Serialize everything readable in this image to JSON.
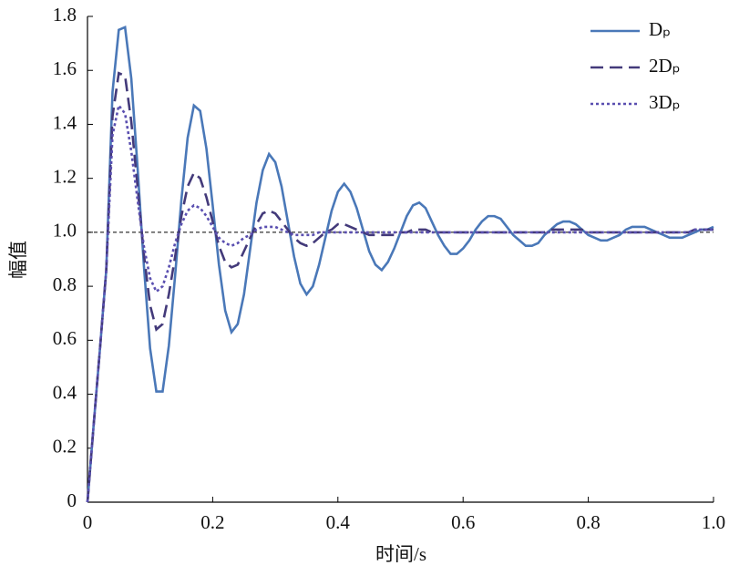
{
  "chart_data": {
    "type": "line",
    "x_label": "时间/s",
    "y_label": "幅值",
    "x": [
      0,
      0.01,
      0.02,
      0.03,
      0.04,
      0.05,
      0.06,
      0.07,
      0.08,
      0.09,
      0.1,
      0.11,
      0.12,
      0.13,
      0.14,
      0.15,
      0.16,
      0.17,
      0.18,
      0.19,
      0.2,
      0.21,
      0.22,
      0.23,
      0.24,
      0.25,
      0.26,
      0.27,
      0.28,
      0.29,
      0.3,
      0.31,
      0.32,
      0.33,
      0.34,
      0.35,
      0.36,
      0.37,
      0.38,
      0.39,
      0.4,
      0.41,
      0.42,
      0.43,
      0.44,
      0.45,
      0.46,
      0.47,
      0.48,
      0.49,
      0.5,
      0.51,
      0.52,
      0.53,
      0.54,
      0.55,
      0.56,
      0.57,
      0.58,
      0.59,
      0.6,
      0.61,
      0.62,
      0.63,
      0.64,
      0.65,
      0.66,
      0.67,
      0.68,
      0.69,
      0.7,
      0.71,
      0.72,
      0.73,
      0.74,
      0.75,
      0.76,
      0.77,
      0.78,
      0.79,
      0.8,
      0.81,
      0.82,
      0.83,
      0.84,
      0.85,
      0.86,
      0.87,
      0.88,
      0.89,
      0.9,
      0.91,
      0.92,
      0.93,
      0.94,
      0.95,
      0.96,
      0.97,
      0.98,
      0.99,
      1
    ],
    "series": [
      {
        "name": "Dₚ",
        "color": "#4a78b8",
        "style": "solid",
        "values": [
          0,
          0.29,
          0.57,
          0.86,
          1.52,
          1.75,
          1.76,
          1.57,
          1.24,
          0.88,
          0.57,
          0.41,
          0.41,
          0.58,
          0.84,
          1.12,
          1.35,
          1.47,
          1.45,
          1.31,
          1.1,
          0.88,
          0.71,
          0.63,
          0.66,
          0.77,
          0.94,
          1.11,
          1.23,
          1.29,
          1.26,
          1.17,
          1.04,
          0.91,
          0.81,
          0.77,
          0.8,
          0.88,
          0.98,
          1.08,
          1.15,
          1.18,
          1.15,
          1.09,
          1.01,
          0.93,
          0.88,
          0.86,
          0.89,
          0.94,
          1,
          1.06,
          1.1,
          1.11,
          1.09,
          1.04,
          0.99,
          0.95,
          0.92,
          0.92,
          0.94,
          0.97,
          1.01,
          1.04,
          1.06,
          1.06,
          1.05,
          1.02,
          0.99,
          0.97,
          0.95,
          0.95,
          0.96,
          0.99,
          1.01,
          1.03,
          1.04,
          1.04,
          1.03,
          1.01,
          0.99,
          0.98,
          0.97,
          0.97,
          0.98,
          0.99,
          1.01,
          1.02,
          1.02,
          1.02,
          1.01,
          1,
          0.99,
          0.98,
          0.98,
          0.98,
          0.99,
          1,
          1.01,
          1.01,
          1.02
        ]
      },
      {
        "name": "2Dₚ",
        "color": "#433a7a",
        "style": "dashed",
        "values": [
          0,
          0.29,
          0.57,
          0.86,
          1.43,
          1.59,
          1.58,
          1.41,
          1.17,
          0.92,
          0.73,
          0.64,
          0.66,
          0.77,
          0.91,
          1.06,
          1.17,
          1.22,
          1.2,
          1.13,
          1.04,
          0.95,
          0.89,
          0.87,
          0.88,
          0.93,
          0.98,
          1.03,
          1.07,
          1.08,
          1.07,
          1.04,
          1.01,
          0.98,
          0.96,
          0.95,
          0.96,
          0.98,
          1,
          1.01,
          1.03,
          1.03,
          1.02,
          1.01,
          1,
          0.99,
          0.99,
          0.99,
          0.99,
          0.99,
          1,
          1,
          1.01,
          1.01,
          1.01,
          1,
          1,
          1,
          1,
          1,
          1,
          1,
          1,
          1,
          1,
          1,
          1,
          1,
          1,
          1,
          1,
          1,
          1,
          1,
          1.01,
          1.01,
          1.01,
          1.01,
          1.01,
          1.01,
          1,
          1,
          1,
          1,
          1,
          1,
          1,
          1,
          1,
          1,
          1,
          1,
          1,
          1,
          1,
          1,
          1,
          1.01,
          1.01,
          1.01,
          1.01
        ]
      },
      {
        "name": "3Dₚ",
        "color": "#5a4fb0",
        "style": "dotted",
        "values": [
          0,
          0.29,
          0.57,
          0.86,
          1.36,
          1.47,
          1.44,
          1.3,
          1.12,
          0.95,
          0.83,
          0.78,
          0.8,
          0.87,
          0.96,
          1.03,
          1.08,
          1.1,
          1.09,
          1.06,
          1.02,
          0.98,
          0.96,
          0.95,
          0.96,
          0.98,
          0.99,
          1.01,
          1.02,
          1.02,
          1.02,
          1.01,
          1,
          0.99,
          0.99,
          0.99,
          0.99,
          1,
          1,
          1,
          1,
          1,
          1,
          1,
          1,
          1,
          1,
          1,
          1,
          1,
          1,
          1,
          1,
          1,
          1,
          1,
          1,
          1,
          1,
          1,
          1,
          1,
          1,
          1,
          1,
          1,
          1,
          1,
          1,
          1,
          1,
          1,
          1,
          1,
          1,
          1,
          1,
          1,
          1,
          1,
          1,
          1,
          1,
          1,
          1,
          1,
          1,
          1,
          1,
          1,
          1,
          1,
          1,
          1,
          1,
          1,
          1,
          1.01,
          1.01,
          1.01,
          1.01
        ]
      }
    ],
    "reference_line": {
      "y": 1,
      "color": "#000000",
      "style": "dashed"
    },
    "xlim": [
      0,
      1
    ],
    "xticks": [
      0,
      0.2,
      0.4,
      0.6,
      0.8,
      {
        "value": 1,
        "label": "1.0"
      }
    ],
    "ylim": [
      0,
      1.8
    ],
    "yticks": [
      0,
      0.2,
      0.4,
      0.6,
      0.8,
      {
        "value": 1,
        "label": "1.0"
      },
      1.2,
      1.4,
      1.6,
      1.8
    ],
    "grid": false,
    "legend": "upper right"
  }
}
